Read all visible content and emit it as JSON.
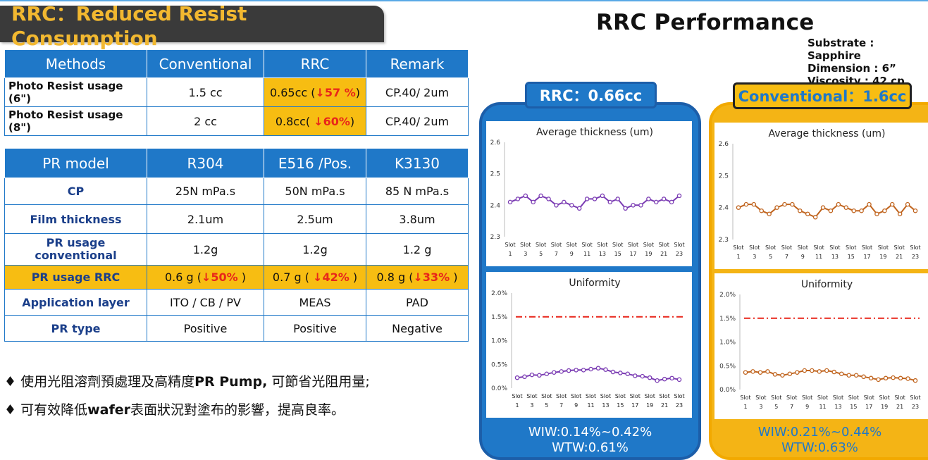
{
  "title": "RRC：Reduced Resist Consumption",
  "perf_title": "RRC Performance",
  "meta": [
    "Substrate : Sapphire",
    "Dimension : 6”",
    "Viscosity : 42 cp"
  ],
  "table1": {
    "headers": [
      "Methods",
      "Conventional",
      "RRC",
      "Remark"
    ],
    "rows": [
      {
        "label": "Photo Resist usage (6\")",
        "conventional": "1.5 cc",
        "rrc": "0.65cc (",
        "rrc_pct": "↓57 %",
        "rrc_close": ")",
        "remark": "CP.40/ 2um"
      },
      {
        "label": "Photo Resist usage (8\")",
        "conventional": "2 cc",
        "rrc": "0.8cc( ",
        "rrc_pct": "↓60%",
        "rrc_close": ")",
        "remark": "CP.40/ 2um"
      }
    ]
  },
  "table2": {
    "headers": [
      "PR model",
      "R304",
      "E516 /Pos.",
      "K3130"
    ],
    "rows": [
      {
        "label": "CP",
        "v": [
          "25N mPa.s",
          "50N mPa.s",
          "85 N mPa.s"
        ]
      },
      {
        "label": "Film thickness",
        "v": [
          "2.1um",
          "2.5um",
          "3.8um"
        ]
      },
      {
        "label": "PR usage conventional",
        "v": [
          "1.2g",
          "1.2g",
          "1.2 g"
        ]
      },
      {
        "label": "Application layer",
        "v": [
          "ITO / CB / PV",
          "MEAS",
          "PAD"
        ]
      },
      {
        "label": "PR type",
        "v": [
          "Positive",
          "Positive",
          "Negative"
        ]
      }
    ],
    "rrc_row": {
      "label": "PR usage RRC",
      "cells": [
        {
          "pre": "0.6 g (",
          "pct": "↓50%",
          "post": " )"
        },
        {
          "pre": "0.7 g ( ",
          "pct": "↓42%",
          "post": " )"
        },
        {
          "pre": "0.8 g (",
          "pct": "↓33%",
          "post": " )"
        }
      ]
    }
  },
  "bullets": [
    {
      "pre": "♦  使用光阻溶劑預處理及高精度",
      "bold": "PR Pump,",
      "post": " 可節省光阻用量;"
    },
    {
      "pre": "♦  可有效降低",
      "bold": "wafer",
      "post": "表面狀況對塗布的影響，提高良率。"
    }
  ],
  "rrc_tag": "RRC：0.66cc",
  "conv_tag": "Conventional：1.6cc",
  "rrc_footer": [
    "WIW:0.14%~0.42%",
    "WTW:0.61%"
  ],
  "conv_footer": [
    "WIW:0.21%~0.44%",
    "WTW:0.63%"
  ],
  "colors": {
    "blue": "#1f78c8",
    "orange": "#f7bd12",
    "purple": "#7a3bb3",
    "brown": "#c0641e",
    "red": "#e8261a"
  },
  "chart_data": [
    {
      "type": "line",
      "title": "Average thickness  (um)",
      "ylim": [
        2.3,
        2.6
      ],
      "yticks": [
        "2.3",
        "2.4",
        "2.5",
        "2.6"
      ],
      "xtick_top": "Slot",
      "xtick_nums": [
        "1",
        "3",
        "5",
        "7",
        "9",
        "11",
        "13",
        "15",
        "17",
        "19",
        "21",
        "23"
      ],
      "series": [
        {
          "values": [
            2.41,
            2.42,
            2.43,
            2.41,
            2.43,
            2.42,
            2.4,
            2.41,
            2.4,
            2.39,
            2.42,
            2.42,
            2.43,
            2.41,
            2.42,
            2.39,
            2.4,
            2.4,
            2.42,
            2.41,
            2.42,
            2.41,
            2.43
          ]
        }
      ]
    },
    {
      "type": "line",
      "title": "Uniformity",
      "ylim": [
        0,
        2.0
      ],
      "yticks": [
        "0.0%",
        "0.5%",
        "1.0%",
        "1.5%",
        "2.0%"
      ],
      "xtick_top": "Slot",
      "xtick_nums": [
        "1",
        "3",
        "5",
        "7",
        "9",
        "11",
        "13",
        "15",
        "17",
        "19",
        "21",
        "23"
      ],
      "limit": 1.5,
      "series": [
        {
          "values": [
            0.22,
            0.24,
            0.28,
            0.27,
            0.3,
            0.33,
            0.35,
            0.37,
            0.38,
            0.38,
            0.4,
            0.42,
            0.39,
            0.34,
            0.32,
            0.3,
            0.26,
            0.25,
            0.22,
            0.16,
            0.19,
            0.21,
            0.18
          ]
        }
      ]
    },
    {
      "type": "line",
      "title": "Average thickness  (um)",
      "ylim": [
        2.3,
        2.6
      ],
      "yticks": [
        "2.3",
        "2.4",
        "2.5",
        "2.6"
      ],
      "xtick_top": "Slot",
      "xtick_nums": [
        "1",
        "3",
        "5",
        "7",
        "9",
        "11",
        "13",
        "15",
        "17",
        "19",
        "21",
        "23"
      ],
      "series": [
        {
          "values": [
            2.4,
            2.41,
            2.41,
            2.39,
            2.38,
            2.4,
            2.41,
            2.41,
            2.39,
            2.38,
            2.37,
            2.4,
            2.39,
            2.41,
            2.4,
            2.39,
            2.39,
            2.41,
            2.38,
            2.39,
            2.41,
            2.38,
            2.41,
            2.39
          ]
        }
      ]
    },
    {
      "type": "line",
      "title": "Uniformity",
      "ylim": [
        0,
        2.0
      ],
      "yticks": [
        "0.0%",
        "0.5%",
        "1.0%",
        "1.5%",
        "2.0%"
      ],
      "xtick_top": "Slot",
      "xtick_nums": [
        "1",
        "3",
        "5",
        "7",
        "9",
        "11",
        "13",
        "15",
        "17",
        "19",
        "21",
        "23"
      ],
      "limit": 1.5,
      "series": [
        {
          "values": [
            0.36,
            0.38,
            0.36,
            0.38,
            0.32,
            0.3,
            0.33,
            0.36,
            0.4,
            0.4,
            0.38,
            0.4,
            0.37,
            0.33,
            0.3,
            0.3,
            0.27,
            0.24,
            0.21,
            0.24,
            0.25,
            0.24,
            0.23,
            0.19
          ]
        }
      ]
    }
  ]
}
